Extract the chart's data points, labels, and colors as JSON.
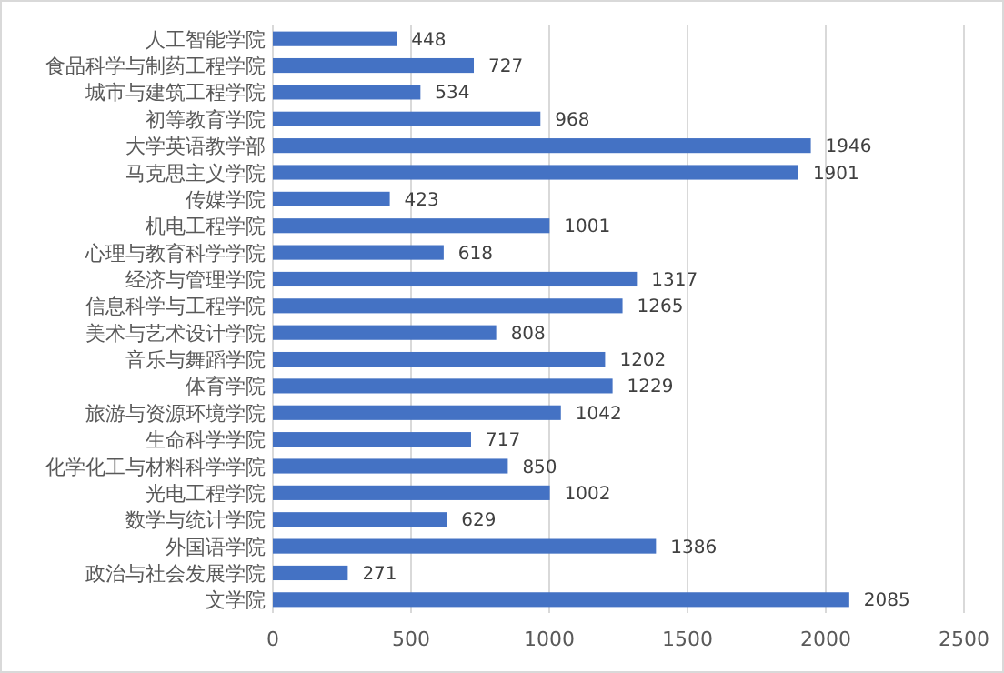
{
  "chart_data": {
    "type": "bar",
    "orientation": "horizontal",
    "categories": [
      "人工智能学院",
      "食品科学与制药工程学院",
      "城市与建筑工程学院",
      "初等教育学院",
      "大学英语教学部",
      "马克思主义学院",
      "传媒学院",
      "机电工程学院",
      "心理与教育科学学院",
      "经济与管理学院",
      "信息科学与工程学院",
      "美术与艺术设计学院",
      "音乐与舞蹈学院",
      "体育学院",
      "旅游与资源环境学院",
      "生命科学学院",
      "化学化工与材料科学学院",
      "光电工程学院",
      "数学与统计学院",
      "外国语学院",
      "政治与社会发展学院",
      "文学院"
    ],
    "values": [
      448,
      727,
      534,
      968,
      1946,
      1901,
      423,
      1001,
      618,
      1317,
      1265,
      808,
      1202,
      1229,
      1042,
      717,
      850,
      1002,
      629,
      1386,
      271,
      2085
    ],
    "color": "#4472c4",
    "xlim": [
      0,
      2500
    ],
    "xticks": [
      0,
      500,
      1000,
      1500,
      2000,
      2500
    ],
    "grid": "x",
    "data_labels": true
  }
}
